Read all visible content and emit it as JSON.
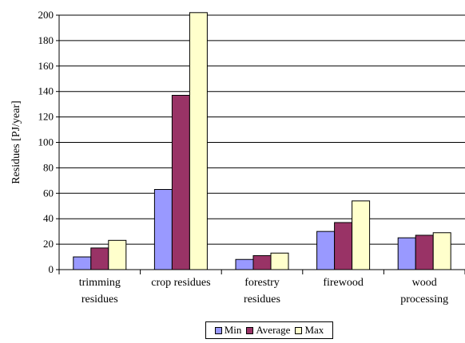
{
  "chart_data": {
    "type": "bar",
    "categories": [
      [
        "trimming",
        "residues"
      ],
      [
        "crop residues"
      ],
      [
        "forestry",
        "residues"
      ],
      [
        "firewood"
      ],
      [
        "wood",
        "processing"
      ]
    ],
    "series": [
      {
        "name": "Min",
        "color": "#9999ff",
        "values": [
          10,
          63,
          8,
          30,
          25
        ]
      },
      {
        "name": "Average",
        "color": "#993366",
        "values": [
          17,
          137,
          11,
          37,
          27
        ]
      },
      {
        "name": "Max",
        "color": "#ffffcc",
        "values": [
          23,
          202,
          13,
          54,
          29
        ]
      }
    ],
    "ylabel": "Residues [PJ/year]",
    "xlabel": "",
    "title": "",
    "ylim": [
      0,
      200
    ],
    "yticks": [
      0,
      20,
      40,
      60,
      80,
      100,
      120,
      140,
      160,
      180,
      200
    ],
    "grid": true,
    "legend_position": "bottom-center"
  }
}
